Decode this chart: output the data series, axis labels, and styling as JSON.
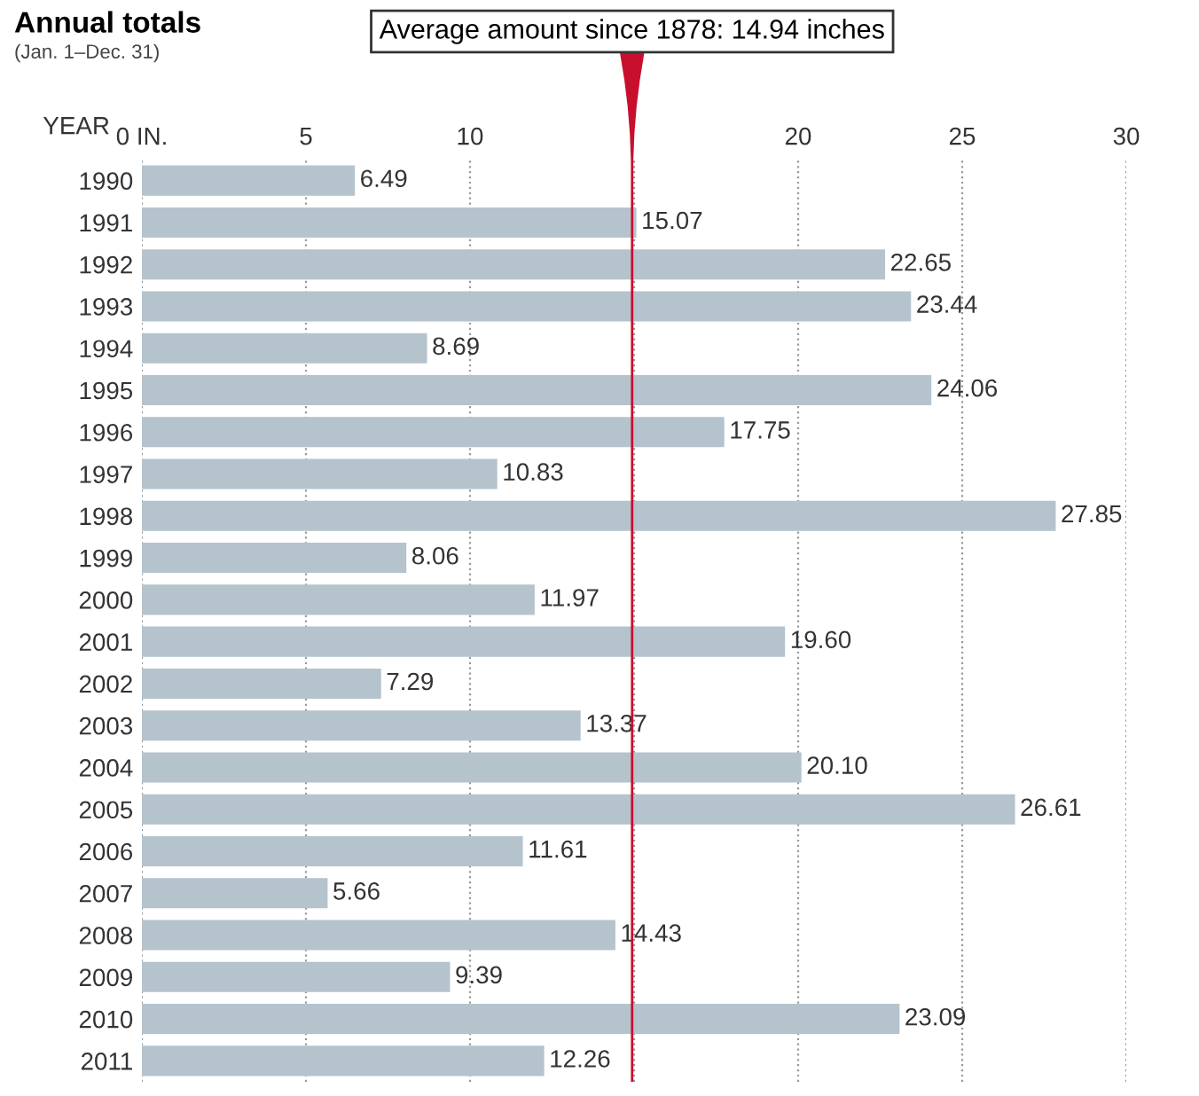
{
  "chart_data": {
    "type": "bar",
    "orientation": "horizontal",
    "title": "Annual totals",
    "subtitle": "(Jan. 1–Dec. 31)",
    "ylabel": "YEAR",
    "categories": [
      "1990",
      "1991",
      "1992",
      "1993",
      "1994",
      "1995",
      "1996",
      "1997",
      "1998",
      "1999",
      "2000",
      "2001",
      "2002",
      "2003",
      "2004",
      "2005",
      "2006",
      "2007",
      "2008",
      "2009",
      "2010",
      "2011"
    ],
    "values": [
      6.49,
      15.07,
      22.65,
      23.44,
      8.69,
      24.06,
      17.75,
      10.83,
      27.85,
      8.06,
      11.97,
      19.6,
      7.29,
      13.37,
      20.1,
      26.61,
      11.61,
      5.66,
      14.43,
      9.39,
      23.09,
      12.26
    ],
    "value_labels": [
      "6.49",
      "15.07",
      "22.65",
      "23.44",
      "8.69",
      "24.06",
      "17.75",
      "10.83",
      "27.85",
      "8.06",
      "11.97",
      "19.60",
      "7.29",
      "13.37",
      "20.10",
      "26.61",
      "11.61",
      "5.66",
      "14.43",
      "9.39",
      "23.09",
      "12.26"
    ],
    "color": "#b5c3cd",
    "xlim": [
      0,
      30
    ],
    "xticks": [
      {
        "value": 0,
        "label": "0 IN."
      },
      5,
      10,
      {
        "value": 15,
        "label": null
      },
      20,
      25,
      30
    ],
    "grid": "x",
    "ref_lines": [
      {
        "axis": "x",
        "value": 14.94,
        "label": "Average amount since 1878: 14.94 inches",
        "color": "#c8102e"
      }
    ]
  }
}
